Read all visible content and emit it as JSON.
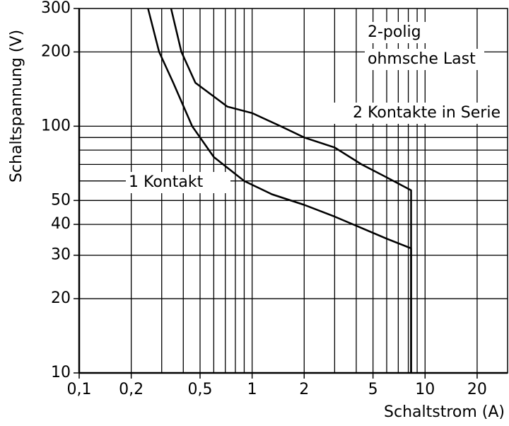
{
  "chart_data": {
    "type": "line",
    "x_label": "Schaltstrom (A)",
    "y_label": "Schaltspannung (V)",
    "annotations": [
      "2-polig",
      "ohmsche Last"
    ],
    "log_x": true,
    "log_y": true,
    "grid": true,
    "xlim": [
      0.1,
      30
    ],
    "ylim": [
      10,
      300
    ],
    "xticks": [
      {
        "value": 0.1,
        "label": "0,1"
      },
      {
        "value": 0.2,
        "label": "0,2"
      },
      {
        "value": 0.5,
        "label": "0,5"
      },
      1,
      2,
      5,
      10,
      20
    ],
    "yticks": [
      10,
      20,
      30,
      40,
      50,
      100,
      200,
      300
    ],
    "xgrid": [
      0.2,
      0.3,
      0.4,
      0.5,
      0.6,
      0.7,
      0.8,
      0.9,
      1,
      2,
      3,
      4,
      5,
      6,
      7,
      8,
      9,
      10,
      20
    ],
    "ygrid": [
      20,
      30,
      40,
      50,
      60,
      70,
      80,
      90,
      100,
      200
    ],
    "series": [
      {
        "name": "1 Kontakt",
        "color": "#000000",
        "x": [
          0.25,
          0.29,
          0.35,
          0.45,
          0.6,
          0.9,
          1.3,
          2,
          3,
          4,
          6,
          8.3,
          8.3
        ],
        "values": [
          300,
          200,
          150,
          100,
          75,
          60,
          53,
          48,
          43,
          39.5,
          35,
          32,
          10
        ]
      },
      {
        "name": "2 Kontakte in Serie",
        "color": "#000000",
        "x": [
          0.34,
          0.39,
          0.47,
          0.72,
          1,
          1.46,
          2,
          3,
          4.3,
          6,
          8.3,
          8.3
        ],
        "values": [
          300,
          200,
          150,
          120,
          113,
          100,
          90,
          82,
          70,
          62,
          55,
          10
        ]
      }
    ]
  }
}
